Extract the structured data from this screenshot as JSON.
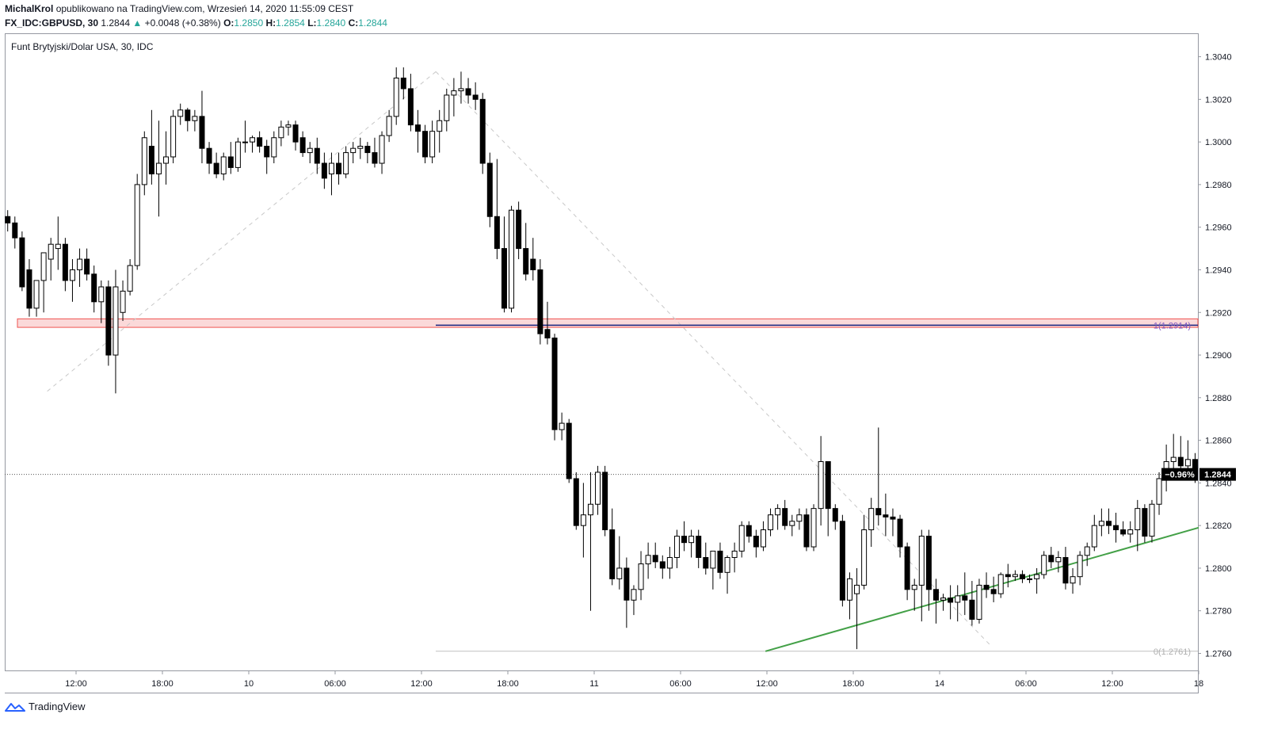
{
  "header": {
    "author": "MichalKrol",
    "published_text": "opublikowano na TradingView.com, Wrzesień 14, 2020 11:55:09 CEST",
    "symbol": "FX_IDC:GBPUSD, 30",
    "last": "1.2844",
    "change_arrow": "▲",
    "change": "+0.0048 (+0.38%)",
    "o_label": "O:",
    "o_value": "1.2850",
    "h_label": "H:",
    "h_value": "1.2854",
    "l_label": "L:",
    "l_value": "1.2840",
    "c_label": "C:",
    "c_value": "1.2844"
  },
  "footer": {
    "brand": "TradingView"
  },
  "colors": {
    "up_color": "#26a69a",
    "candle": "#000000",
    "trend_line": "#43a047",
    "level_line": "#1a237e",
    "zone_border": "#ef5350"
  },
  "chart_data": {
    "type": "candlestick",
    "title": "Funt Brytyjski/Dolar USA, 30, IDC",
    "xlabel": "",
    "ylabel": "",
    "ylim": [
      1.2752,
      1.3051
    ],
    "y_ticks": [
      1.276,
      1.278,
      1.28,
      1.282,
      1.284,
      1.286,
      1.288,
      1.29,
      1.292,
      1.294,
      1.296,
      1.298,
      1.3,
      1.302,
      1.304
    ],
    "y_tick_decimals": 4,
    "x_range": [
      0,
      166
    ],
    "x_ticks": [
      {
        "x": 9.5,
        "label": "12:00"
      },
      {
        "x": 21.5,
        "label": "18:00"
      },
      {
        "x": 33.5,
        "label": "10"
      },
      {
        "x": 45.5,
        "label": "06:00"
      },
      {
        "x": 57.5,
        "label": "12:00"
      },
      {
        "x": 69.5,
        "label": "18:00"
      },
      {
        "x": 81.5,
        "label": "11"
      },
      {
        "x": 93.5,
        "label": "06:00"
      },
      {
        "x": 105.5,
        "label": "12:00"
      },
      {
        "x": 117.5,
        "label": "18:00"
      },
      {
        "x": 129.5,
        "label": "14"
      },
      {
        "x": 141.5,
        "label": "06:00"
      },
      {
        "x": 153.5,
        "label": "12:00"
      },
      {
        "x": 165.5,
        "label": "18"
      }
    ],
    "candles": [
      [
        1.2965,
        1.2968,
        1.2958,
        1.2962
      ],
      [
        1.2962,
        1.2965,
        1.295,
        1.2955
      ],
      [
        1.2955,
        1.2958,
        1.293,
        1.2932
      ],
      [
        1.294,
        1.2945,
        1.2918,
        1.2922
      ],
      [
        1.2922,
        1.2935,
        1.2918,
        1.2935
      ],
      [
        1.2935,
        1.2948,
        1.292,
        1.2948
      ],
      [
        1.2945,
        1.2955,
        1.2935,
        1.2952
      ],
      [
        1.295,
        1.2965,
        1.294,
        1.2952
      ],
      [
        1.2952,
        1.2955,
        1.293,
        1.2935
      ],
      [
        1.2935,
        1.2945,
        1.2925,
        1.294
      ],
      [
        1.294,
        1.295,
        1.2932,
        1.2945
      ],
      [
        1.2945,
        1.295,
        1.2935,
        1.2938
      ],
      [
        1.2938,
        1.2942,
        1.292,
        1.2925
      ],
      [
        1.2925,
        1.2935,
        1.2915,
        1.2932
      ],
      [
        1.2932,
        1.2935,
        1.2895,
        1.29
      ],
      [
        1.29,
        1.294,
        1.2882,
        1.2932
      ],
      [
        1.292,
        1.2935,
        1.2916,
        1.293
      ],
      [
        1.293,
        1.2945,
        1.2928,
        1.2942
      ],
      [
        1.2942,
        1.2985,
        1.294,
        1.298
      ],
      [
        1.298,
        1.3005,
        1.2975,
        1.3002
      ],
      [
        1.2998,
        1.3015,
        1.298,
        1.2985
      ],
      [
        1.2985,
        1.301,
        1.2965,
        1.299
      ],
      [
        1.299,
        1.3005,
        1.298,
        1.2993
      ],
      [
        1.2993,
        1.3015,
        1.299,
        1.3012
      ],
      [
        1.3012,
        1.3018,
        1.3008,
        1.3015
      ],
      [
        1.3015,
        1.3016,
        1.3005,
        1.301
      ],
      [
        1.301,
        1.3015,
        1.3005,
        1.3012
      ],
      [
        1.3012,
        1.3024,
        1.299,
        1.2997
      ],
      [
        1.2997,
        1.3,
        1.2985,
        1.299
      ],
      [
        1.299,
        1.2995,
        1.2983,
        1.2985
      ],
      [
        1.2985,
        1.2995,
        1.2982,
        1.2993
      ],
      [
        1.2993,
        1.3,
        1.2985,
        1.2988
      ],
      [
        1.2988,
        1.3002,
        1.2986,
        1.3
      ],
      [
        1.3,
        1.301,
        1.2995,
        1.3
      ],
      [
        1.3,
        1.3003,
        1.2995,
        1.3002
      ],
      [
        1.3002,
        1.3005,
        1.2995,
        1.2998
      ],
      [
        1.2998,
        1.3001,
        1.2985,
        1.2993
      ],
      [
        1.2993,
        1.3005,
        1.299,
        1.3002
      ],
      [
        1.3002,
        1.301,
        1.2998,
        1.3007
      ],
      [
        1.3007,
        1.301,
        1.3003,
        1.3008
      ],
      [
        1.3008,
        1.301,
        1.2996,
        1.3
      ],
      [
        1.3002,
        1.3005,
        1.2993,
        1.2995
      ],
      [
        1.2995,
        1.3,
        1.299,
        1.2997
      ],
      [
        1.2997,
        1.3002,
        1.2985,
        1.299
      ],
      [
        1.299,
        1.2995,
        1.2978,
        1.2983
      ],
      [
        1.2985,
        1.2995,
        1.2975,
        1.299
      ],
      [
        1.299,
        1.2995,
        1.298,
        1.2985
      ],
      [
        1.2985,
        1.2998,
        1.2983,
        1.2995
      ],
      [
        1.2995,
        1.3,
        1.299,
        1.2997
      ],
      [
        1.2997,
        1.3002,
        1.2992,
        1.2998
      ],
      [
        1.2998,
        1.3,
        1.299,
        1.2995
      ],
      [
        1.2995,
        1.3002,
        1.2988,
        1.299
      ],
      [
        1.299,
        1.3005,
        1.2985,
        1.3003
      ],
      [
        1.3003,
        1.3015,
        1.3,
        1.3012
      ],
      [
        1.3012,
        1.3035,
        1.3008,
        1.303
      ],
      [
        1.303,
        1.3035,
        1.302,
        1.3025
      ],
      [
        1.3025,
        1.3032,
        1.3005,
        1.3008
      ],
      [
        1.3008,
        1.3015,
        1.2995,
        1.3005
      ],
      [
        1.3005,
        1.3008,
        1.299,
        1.2993
      ],
      [
        1.2993,
        1.301,
        1.299,
        1.3005
      ],
      [
        1.3005,
        1.3015,
        1.2995,
        1.301
      ],
      [
        1.301,
        1.3025,
        1.3005,
        1.3022
      ],
      [
        1.3022,
        1.303,
        1.3012,
        1.3024
      ],
      [
        1.3024,
        1.3033,
        1.3018,
        1.3025
      ],
      [
        1.3025,
        1.303,
        1.3018,
        1.3022
      ],
      [
        1.3022,
        1.3028,
        1.3015,
        1.302
      ],
      [
        1.302,
        1.3023,
        1.2985,
        1.299
      ],
      [
        1.299,
        1.2995,
        1.296,
        1.2965
      ],
      [
        1.2965,
        1.2992,
        1.2945,
        1.295
      ],
      [
        1.295,
        1.2965,
        1.292,
        1.2922
      ],
      [
        1.2922,
        1.297,
        1.292,
        1.2968
      ],
      [
        1.2968,
        1.2972,
        1.2945,
        1.295
      ],
      [
        1.295,
        1.2962,
        1.2935,
        1.2938
      ],
      [
        1.2945,
        1.2955,
        1.2935,
        1.294
      ],
      [
        1.294,
        1.2945,
        1.2905,
        1.291
      ],
      [
        1.2912,
        1.2925,
        1.2905,
        1.2908
      ],
      [
        1.2908,
        1.291,
        1.286,
        1.2865
      ],
      [
        1.2865,
        1.2873,
        1.286,
        1.2868
      ],
      [
        1.2868,
        1.287,
        1.284,
        1.2842
      ],
      [
        1.2842,
        1.2845,
        1.2818,
        1.282
      ],
      [
        1.282,
        1.284,
        1.2805,
        1.2825
      ],
      [
        1.2825,
        1.2845,
        1.278,
        1.283
      ],
      [
        1.283,
        1.2848,
        1.2825,
        1.2845
      ],
      [
        1.2845,
        1.2848,
        1.2815,
        1.2818
      ],
      [
        1.2818,
        1.2828,
        1.2792,
        1.2795
      ],
      [
        1.2795,
        1.2815,
        1.279,
        1.28
      ],
      [
        1.28,
        1.2805,
        1.2772,
        1.2785
      ],
      [
        1.2785,
        1.2792,
        1.2778,
        1.279
      ],
      [
        1.279,
        1.2808,
        1.2785,
        1.2802
      ],
      [
        1.2802,
        1.2812,
        1.2795,
        1.2806
      ],
      [
        1.2806,
        1.2812,
        1.28,
        1.2803
      ],
      [
        1.2803,
        1.2806,
        1.2795,
        1.28
      ],
      [
        1.28,
        1.281,
        1.2795,
        1.2805
      ],
      [
        1.2805,
        1.2818,
        1.28,
        1.2815
      ],
      [
        1.2815,
        1.2822,
        1.2808,
        1.2812
      ],
      [
        1.2812,
        1.2818,
        1.2805,
        1.2815
      ],
      [
        1.2815,
        1.2818,
        1.28,
        1.2805
      ],
      [
        1.2805,
        1.2812,
        1.2797,
        1.28
      ],
      [
        1.28,
        1.2806,
        1.279,
        1.2808
      ],
      [
        1.2808,
        1.2812,
        1.2795,
        1.2798
      ],
      [
        1.2798,
        1.2806,
        1.2788,
        1.2805
      ],
      [
        1.2805,
        1.2812,
        1.2798,
        1.2808
      ],
      [
        1.2808,
        1.2822,
        1.2805,
        1.282
      ],
      [
        1.282,
        1.2822,
        1.2812,
        1.2815
      ],
      [
        1.2815,
        1.2818,
        1.2805,
        1.281
      ],
      [
        1.281,
        1.2822,
        1.2808,
        1.2818
      ],
      [
        1.2818,
        1.2828,
        1.2815,
        1.2825
      ],
      [
        1.2825,
        1.283,
        1.2818,
        1.2828
      ],
      [
        1.2828,
        1.2832,
        1.2818,
        1.282
      ],
      [
        1.282,
        1.2825,
        1.2815,
        1.2822
      ],
      [
        1.2822,
        1.2828,
        1.2818,
        1.2825
      ],
      [
        1.2825,
        1.2828,
        1.2808,
        1.281
      ],
      [
        1.281,
        1.283,
        1.2808,
        1.2828
      ],
      [
        1.2828,
        1.2862,
        1.282,
        1.285
      ],
      [
        1.285,
        1.285,
        1.2815,
        1.2828
      ],
      [
        1.2828,
        1.283,
        1.2818,
        1.2822
      ],
      [
        1.2822,
        1.2825,
        1.2782,
        1.2785
      ],
      [
        1.2785,
        1.2798,
        1.2776,
        1.2795
      ],
      [
        1.2788,
        1.28,
        1.2762,
        1.2792
      ],
      [
        1.2792,
        1.2825,
        1.279,
        1.2818
      ],
      [
        1.2818,
        1.2833,
        1.281,
        1.2828
      ],
      [
        1.2828,
        1.2866,
        1.282,
        1.2825
      ],
      [
        1.2825,
        1.2835,
        1.2815,
        1.2824
      ],
      [
        1.2824,
        1.2828,
        1.2815,
        1.2823
      ],
      [
        1.2823,
        1.2825,
        1.2805,
        1.281
      ],
      [
        1.281,
        1.2812,
        1.2785,
        1.279
      ],
      [
        1.279,
        1.2795,
        1.278,
        1.2792
      ],
      [
        1.2792,
        1.2818,
        1.2775,
        1.2815
      ],
      [
        1.2815,
        1.2818,
        1.278,
        1.279
      ],
      [
        1.279,
        1.2795,
        1.2774,
        1.2785
      ],
      [
        1.2785,
        1.2788,
        1.278,
        1.2786
      ],
      [
        1.2786,
        1.2792,
        1.2776,
        1.2784
      ],
      [
        1.2784,
        1.2792,
        1.2775,
        1.2787
      ],
      [
        1.2787,
        1.2798,
        1.2778,
        1.2785
      ],
      [
        1.2785,
        1.2794,
        1.2773,
        1.2776
      ],
      [
        1.2776,
        1.2795,
        1.2774,
        1.2792
      ],
      [
        1.2792,
        1.2798,
        1.2786,
        1.279
      ],
      [
        1.279,
        1.2796,
        1.2784,
        1.2788
      ],
      [
        1.2788,
        1.2798,
        1.2786,
        1.2797
      ],
      [
        1.2797,
        1.2802,
        1.2791,
        1.2796
      ],
      [
        1.2796,
        1.2799,
        1.2794,
        1.2797
      ],
      [
        1.2797,
        1.2799,
        1.2793,
        1.2795
      ],
      [
        1.2795,
        1.2797,
        1.2793,
        1.2795
      ],
      [
        1.2795,
        1.28,
        1.2788,
        1.2797
      ],
      [
        1.2797,
        1.2808,
        1.2795,
        1.2806
      ],
      [
        1.2806,
        1.281,
        1.28,
        1.2803
      ],
      [
        1.2803,
        1.2808,
        1.2798,
        1.2805
      ],
      [
        1.2805,
        1.281,
        1.279,
        1.2793
      ],
      [
        1.2793,
        1.28,
        1.2788,
        1.2796
      ],
      [
        1.2796,
        1.2808,
        1.2792,
        1.2806
      ],
      [
        1.2806,
        1.2812,
        1.2801,
        1.281
      ],
      [
        1.281,
        1.2825,
        1.2808,
        1.282
      ],
      [
        1.282,
        1.2828,
        1.2815,
        1.2822
      ],
      [
        1.2822,
        1.2828,
        1.2816,
        1.282
      ],
      [
        1.282,
        1.2826,
        1.2812,
        1.2818
      ],
      [
        1.2818,
        1.2822,
        1.2815,
        1.2816
      ],
      [
        1.2816,
        1.2822,
        1.2812,
        1.2818
      ],
      [
        1.2818,
        1.2832,
        1.2808,
        1.2828
      ],
      [
        1.2828,
        1.283,
        1.2812,
        1.2815
      ],
      [
        1.2815,
        1.2832,
        1.2812,
        1.283
      ],
      [
        1.283,
        1.2845,
        1.2825,
        1.2842
      ],
      [
        1.2842,
        1.2858,
        1.2836,
        1.285
      ],
      [
        1.285,
        1.2863,
        1.2845,
        1.2852
      ],
      [
        1.2852,
        1.2862,
        1.2846,
        1.2848
      ],
      [
        1.2848,
        1.286,
        1.2842,
        1.2851
      ],
      [
        1.2851,
        1.2854,
        1.284,
        1.2844
      ]
    ],
    "horizontal_levels": [
      {
        "value": 1.2914,
        "label": "1(1.2914)",
        "style": "blue-solid"
      },
      {
        "value": 1.2761,
        "label": "0(1.2761)",
        "style": "gray-solid"
      }
    ],
    "zone": {
      "top": 1.2917,
      "bottom": 1.2913
    },
    "trend_line": {
      "start": {
        "x": 105.3,
        "y": 1.2761
      },
      "end": {
        "x": 165.5,
        "y": 1.2819
      }
    },
    "diagonal_lines": [
      {
        "start": {
          "x": 5.5,
          "y": 1.2883
        },
        "end": {
          "x": 59.5,
          "y": 1.3033
        }
      },
      {
        "start": {
          "x": 59.5,
          "y": 1.3033
        },
        "end": {
          "x": 136.5,
          "y": 1.2764
        }
      }
    ],
    "current_price": {
      "value": 1.2844,
      "value_label": "1.2844",
      "change_label": "−0.96%"
    }
  }
}
